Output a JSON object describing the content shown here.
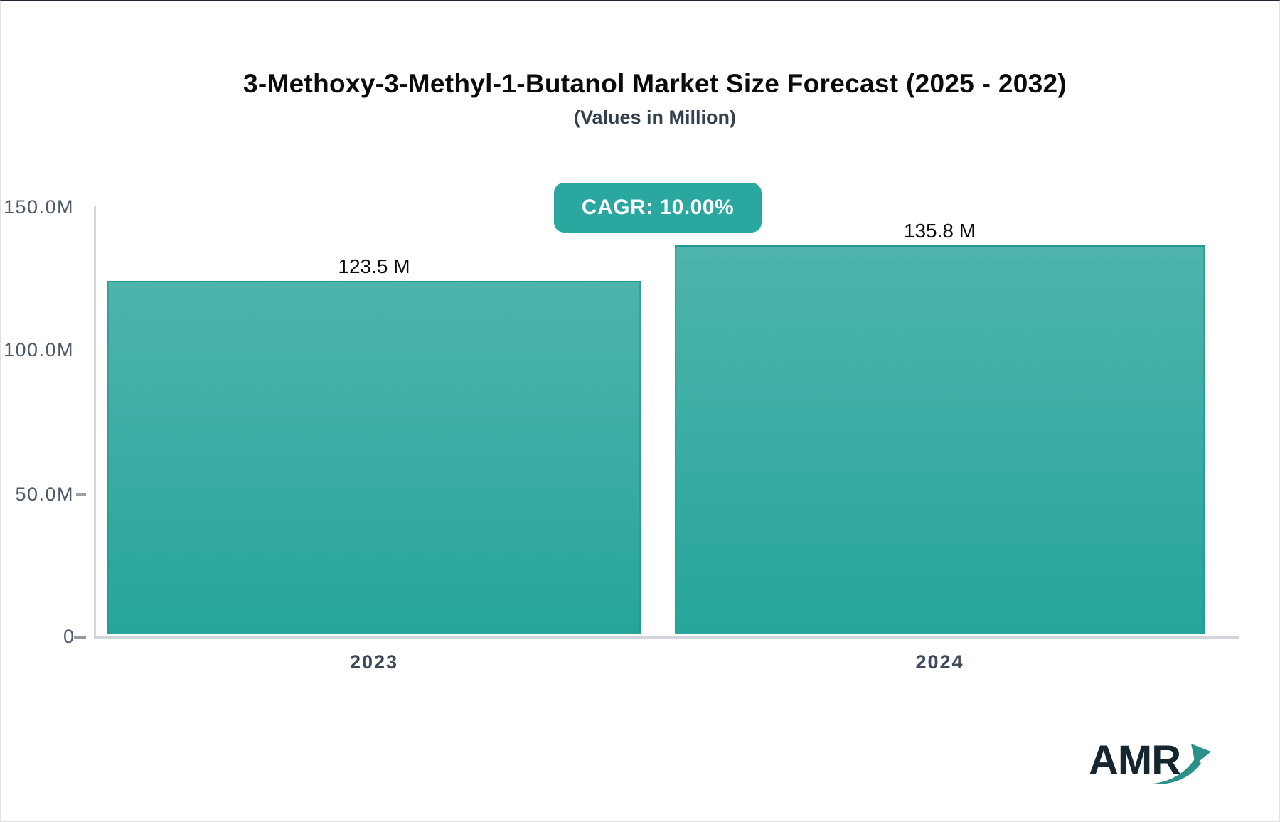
{
  "chart_data": {
    "type": "bar",
    "title": "3-Methoxy-3-Methyl-1-Butanol Market Size Forecast (2025 - 2032)",
    "subtitle": "(Values in Million)",
    "cagr_label": "CAGR: 10.00%",
    "categories": [
      "2023",
      "2024"
    ],
    "values": [
      123.5,
      135.8
    ],
    "value_labels": [
      "123.5 M",
      "135.8 M"
    ],
    "unit": "Million",
    "ylim": [
      0,
      150
    ],
    "ytick_labels": [
      "150.0M",
      "100.0M",
      "50.0M",
      "0"
    ],
    "grid": false,
    "legend": false
  },
  "logo": {
    "text": "AMR",
    "icon": "growth-arrow-icon"
  },
  "colors": {
    "accent": "#2aa79e",
    "bar_top": "#4eb4ac",
    "bar_bottom": "#26a59b",
    "axis_line": "#d0d4dc",
    "logo_arrow": "#2b8f8a"
  }
}
